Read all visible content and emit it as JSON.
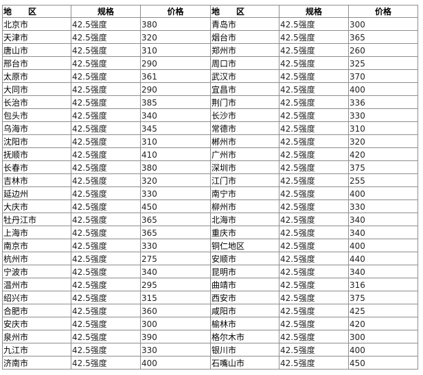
{
  "headers": {
    "region": "地　　区",
    "spec": "规格",
    "price": "价格"
  },
  "left": [
    {
      "region": "北京市",
      "spec": "42.5强度",
      "price": "380"
    },
    {
      "region": "天津市",
      "spec": "42.5强度",
      "price": "320"
    },
    {
      "region": "唐山市",
      "spec": "42.5强度",
      "price": "310"
    },
    {
      "region": "邢台市",
      "spec": "42.5强度",
      "price": "290"
    },
    {
      "region": "太原市",
      "spec": "42.5强度",
      "price": "361"
    },
    {
      "region": "大同市",
      "spec": "42.5强度",
      "price": "290"
    },
    {
      "region": "长治市",
      "spec": "42.5强度",
      "price": "385"
    },
    {
      "region": "包头市",
      "spec": "42.5强度",
      "price": "340"
    },
    {
      "region": "乌海市",
      "spec": "42.5强度",
      "price": "345"
    },
    {
      "region": "沈阳市",
      "spec": "42.5强度",
      "price": "310"
    },
    {
      "region": "抚顺市",
      "spec": "42.5强度",
      "price": "410"
    },
    {
      "region": "长春市",
      "spec": "42.5强度",
      "price": "380"
    },
    {
      "region": "吉林市",
      "spec": "42.5强度",
      "price": "320"
    },
    {
      "region": "延边州",
      "spec": "42.5强度",
      "price": "330"
    },
    {
      "region": "大庆市",
      "spec": "42.5强度",
      "price": "450"
    },
    {
      "region": "牡丹江市",
      "spec": "42.5强度",
      "price": "365"
    },
    {
      "region": "上海市",
      "spec": "42.5强度",
      "price": "365"
    },
    {
      "region": "南京市",
      "spec": "42.5强度",
      "price": "330"
    },
    {
      "region": "杭州市",
      "spec": "42.5强度",
      "price": "275"
    },
    {
      "region": "宁波市",
      "spec": "42.5强度",
      "price": "340"
    },
    {
      "region": "温州市",
      "spec": "42.5强度",
      "price": "295"
    },
    {
      "region": "绍兴市",
      "spec": "42.5强度",
      "price": "315"
    },
    {
      "region": "合肥市",
      "spec": "42.5强度",
      "price": "360"
    },
    {
      "region": "安庆市",
      "spec": "42.5强度",
      "price": "300"
    },
    {
      "region": "泉州市",
      "spec": "42.5强度",
      "price": "390"
    },
    {
      "region": "九江市",
      "spec": "42.5强度",
      "price": "330"
    },
    {
      "region": "济南市",
      "spec": "42.5强度",
      "price": "400"
    }
  ],
  "right": [
    {
      "region": "青岛市",
      "spec": "42.5强度",
      "price": "300"
    },
    {
      "region": "烟台市",
      "spec": "42.5强度",
      "price": "365"
    },
    {
      "region": "郑州市",
      "spec": "42.5强度",
      "price": "260"
    },
    {
      "region": "周口市",
      "spec": "42.5强度",
      "price": "325"
    },
    {
      "region": "武汉市",
      "spec": "42.5强度",
      "price": "370"
    },
    {
      "region": "宜昌市",
      "spec": "42.5强度",
      "price": "400"
    },
    {
      "region": "荆门市",
      "spec": "42.5强度",
      "price": "336"
    },
    {
      "region": "长沙市",
      "spec": "42.5强度",
      "price": "330"
    },
    {
      "region": "常德市",
      "spec": "42.5强度",
      "price": "310"
    },
    {
      "region": "郴州市",
      "spec": "42.5强度",
      "price": "320"
    },
    {
      "region": "广州市",
      "spec": "42.5强度",
      "price": "420"
    },
    {
      "region": "深圳市",
      "spec": "42.5强度",
      "price": "375"
    },
    {
      "region": "江门市",
      "spec": "42.5强度",
      "price": "255"
    },
    {
      "region": "南宁市",
      "spec": "42.5强度",
      "price": "400"
    },
    {
      "region": "柳州市",
      "spec": "42.5强度",
      "price": "330"
    },
    {
      "region": "北海市",
      "spec": "42.5强度",
      "price": "340"
    },
    {
      "region": "重庆市",
      "spec": "42.5强度",
      "price": "340"
    },
    {
      "region": "铜仁地区",
      "spec": "42.5强度",
      "price": "400"
    },
    {
      "region": "安顺市",
      "spec": "42.5强度",
      "price": "440"
    },
    {
      "region": "昆明市",
      "spec": "42.5强度",
      "price": "340"
    },
    {
      "region": "曲靖市",
      "spec": "42.5强度",
      "price": "316"
    },
    {
      "region": "西安市",
      "spec": "42.5强度",
      "price": "375"
    },
    {
      "region": "咸阳市",
      "spec": "42.5强度",
      "price": "425"
    },
    {
      "region": "榆林市",
      "spec": "42.5强度",
      "price": "420"
    },
    {
      "region": "格尔木市",
      "spec": "42.5强度",
      "price": "300"
    },
    {
      "region": "银川市",
      "spec": "42.5强度",
      "price": "400"
    },
    {
      "region": "石嘴山市",
      "spec": "42.5强度",
      "price": "450"
    }
  ]
}
